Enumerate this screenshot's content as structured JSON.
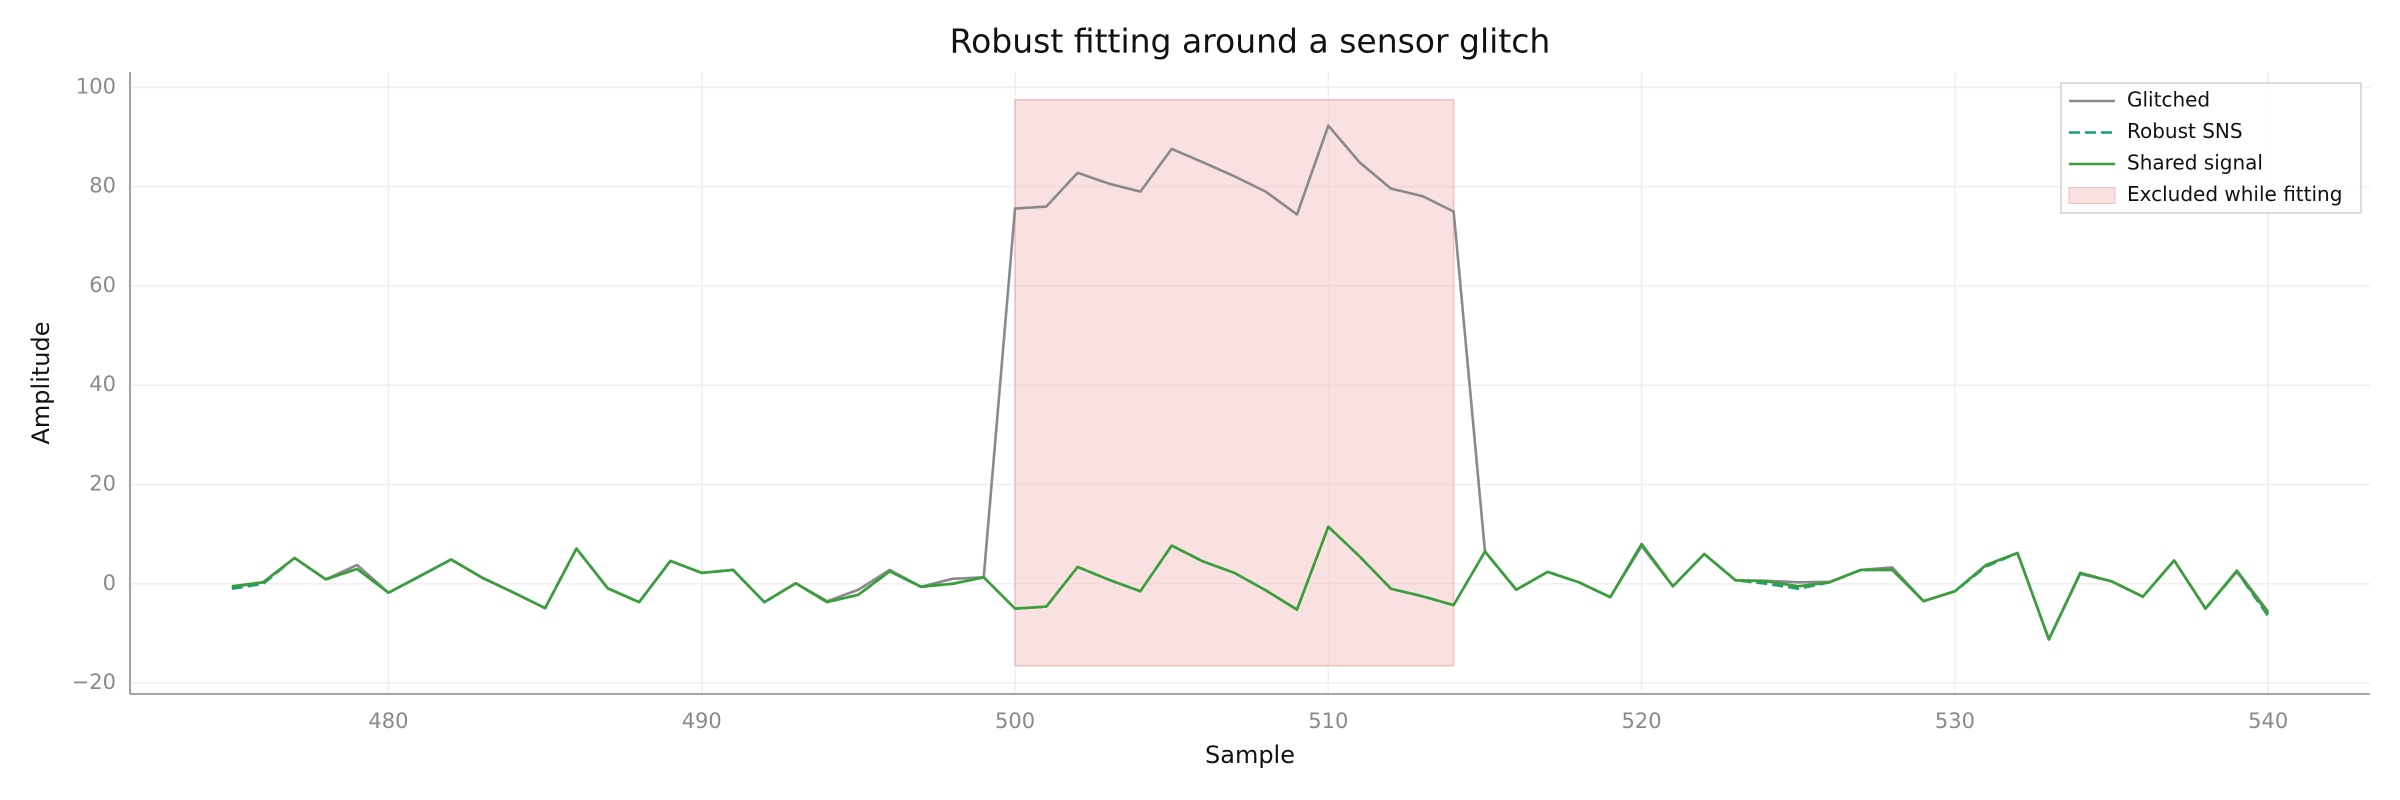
{
  "chart_data": {
    "type": "line",
    "title": "Robust fitting around a sensor glitch",
    "xlabel": "Sample",
    "ylabel": "Amplitude",
    "x": [
      475,
      476,
      477,
      478,
      479,
      480,
      481,
      482,
      483,
      484,
      485,
      486,
      487,
      488,
      489,
      490,
      491,
      492,
      493,
      494,
      495,
      496,
      497,
      498,
      499,
      500,
      501,
      502,
      503,
      504,
      505,
      506,
      507,
      508,
      509,
      510,
      511,
      512,
      513,
      514,
      515,
      516,
      517,
      518,
      519,
      520,
      521,
      522,
      523,
      524,
      525,
      526,
      527,
      528,
      529,
      530,
      531,
      532,
      533,
      534,
      535,
      536,
      537,
      538,
      539,
      540
    ],
    "series": [
      {
        "name": "Glitched",
        "color": "#8a8a8a",
        "dash": false,
        "values": [
          -0.7,
          0.3,
          5.2,
          0.9,
          3.8,
          -1.8,
          1.6,
          4.9,
          1.2,
          -1.8,
          -4.9,
          7.1,
          -0.9,
          -3.7,
          4.6,
          2.2,
          2.8,
          -3.7,
          0.1,
          -3.5,
          -1.2,
          2.8,
          -0.6,
          1.0,
          1.3,
          75.6,
          76.0,
          82.8,
          80.6,
          79.0,
          87.6,
          84.9,
          82.1,
          79.0,
          74.4,
          92.3,
          84.9,
          79.6,
          78.1,
          75.0,
          6.5,
          -1.2,
          2.4,
          0.3,
          -2.7,
          7.6,
          -0.5,
          6.0,
          0.7,
          0.6,
          0.3,
          0.4,
          2.8,
          3.3,
          -3.5,
          -1.5,
          3.8,
          6.2,
          -11.2,
          2.0,
          0.5,
          -2.6,
          4.7,
          -5.0,
          2.7,
          -5.6
        ]
      },
      {
        "name": "Robust SNS",
        "color": "#1b9e77",
        "dash": true,
        "values": [
          -1.0,
          0.0,
          5.2,
          0.9,
          3.0,
          -1.8,
          1.5,
          4.9,
          1.2,
          -1.8,
          -4.9,
          7.1,
          -0.9,
          -3.7,
          4.6,
          2.2,
          2.8,
          -3.7,
          0.1,
          -3.7,
          -2.2,
          2.5,
          -0.6,
          0.0,
          1.3,
          -5.0,
          -4.6,
          3.4,
          0.8,
          -1.5,
          7.7,
          4.5,
          2.2,
          -1.3,
          -5.2,
          11.5,
          5.5,
          -1.0,
          -2.5,
          -4.3,
          6.5,
          -1.2,
          2.4,
          0.3,
          -2.7,
          8.0,
          -0.5,
          6.0,
          0.7,
          0.0,
          -1.0,
          0.3,
          2.8,
          2.8,
          -3.5,
          -1.5,
          3.5,
          6.2,
          -11.2,
          2.2,
          0.5,
          -2.6,
          4.7,
          -5.0,
          2.5,
          -6.5
        ]
      },
      {
        "name": "Shared signal",
        "color": "#3a9e3a",
        "dash": false,
        "values": [
          -0.5,
          0.3,
          5.2,
          0.9,
          3.0,
          -1.8,
          1.5,
          4.9,
          1.2,
          -1.8,
          -4.9,
          7.1,
          -0.9,
          -3.7,
          4.6,
          2.2,
          2.8,
          -3.7,
          0.1,
          -3.7,
          -2.2,
          2.5,
          -0.6,
          0.0,
          1.3,
          -5.0,
          -4.6,
          3.4,
          0.8,
          -1.5,
          7.7,
          4.5,
          2.2,
          -1.3,
          -5.2,
          11.5,
          5.5,
          -1.0,
          -2.5,
          -4.3,
          6.5,
          -1.2,
          2.4,
          0.3,
          -2.7,
          8.0,
          -0.5,
          6.0,
          0.7,
          0.5,
          -0.5,
          0.3,
          2.8,
          2.8,
          -3.5,
          -1.5,
          3.8,
          6.2,
          -11.2,
          2.2,
          0.5,
          -2.6,
          4.7,
          -5.0,
          2.5,
          -6.0
        ]
      }
    ],
    "excluded": {
      "name": "Excluded while fitting",
      "color": "#f4c4c6",
      "x": [
        500,
        514
      ],
      "y": [
        -16.5,
        97.5
      ]
    },
    "xlim": [
      471.75,
      543.25
    ],
    "ylim": [
      -22.2,
      103.1
    ],
    "xticks": [
      480,
      490,
      500,
      510,
      520,
      530,
      540
    ],
    "yticks": [
      {
        "value": -20,
        "label": "−20"
      },
      0,
      20,
      40,
      60,
      80,
      100
    ],
    "grid": true,
    "legend": "upper right"
  }
}
